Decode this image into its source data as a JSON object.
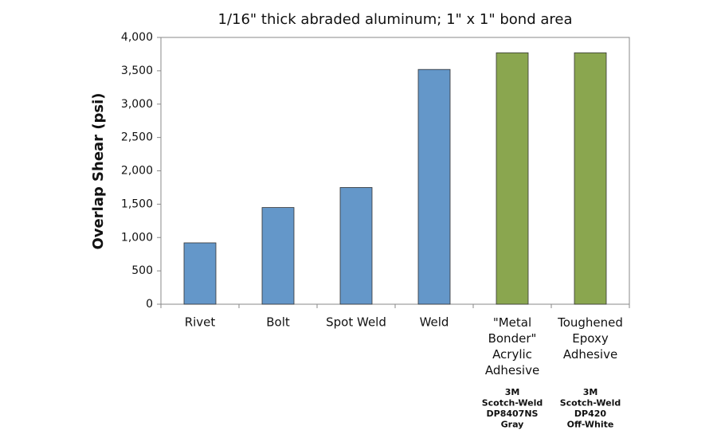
{
  "chart_data": {
    "type": "bar",
    "title": "1/16\" thick abraded aluminum; 1\" x 1\" bond area",
    "y_label": "Overlap Shear (psi)",
    "categories": [
      "Rivet",
      "Bolt",
      "Spot Weld",
      "Weld",
      "\"Metal\nBonder\"\nAcrylic\nAdhesive",
      "Toughened\nEpoxy\nAdhesive"
    ],
    "values": [
      920,
      1450,
      1750,
      3520,
      3770,
      3770
    ],
    "colors": [
      "#6497c9",
      "#6497c9",
      "#6497c9",
      "#6497c9",
      "#8aa64f",
      "#8aa64f"
    ],
    "product_notes": [
      null,
      null,
      null,
      null,
      "3M\nScotch-Weld\nDP8407NS\nGray",
      "3M\nScotch-Weld\nDP420\nOff-White"
    ],
    "ylim": [
      0,
      4000
    ],
    "yticks": [
      0,
      500,
      {
        "value": 1000,
        "label": "1,000"
      },
      {
        "value": 1500,
        "label": "1,500"
      },
      {
        "value": 2000,
        "label": "2,000"
      },
      {
        "value": 2500,
        "label": "2,500"
      },
      {
        "value": 3000,
        "label": "3,000"
      },
      {
        "value": 3500,
        "label": "3,500"
      },
      {
        "value": 4000,
        "label": "4,000"
      }
    ],
    "grid": false
  }
}
